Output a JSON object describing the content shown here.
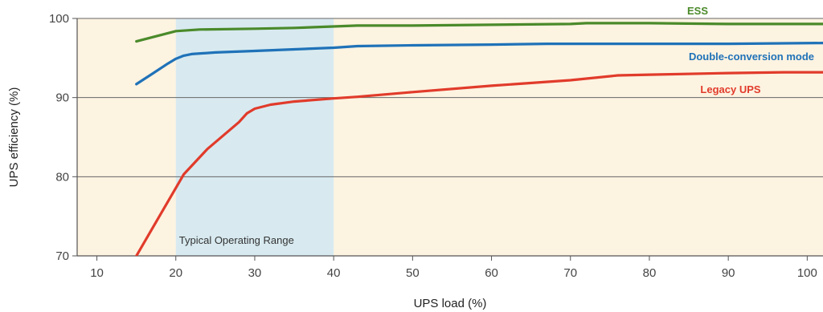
{
  "chart_data": {
    "type": "line",
    "xlabel": "UPS load (%)",
    "ylabel": "UPS efficiency (%)",
    "xlim": [
      7.5,
      102
    ],
    "ylim": [
      70,
      100
    ],
    "x_ticks": [
      10,
      20,
      30,
      40,
      50,
      60,
      70,
      80,
      90,
      100
    ],
    "y_ticks": [
      70,
      80,
      90,
      100
    ],
    "grid": "horizontal",
    "highlight_band": {
      "label": "Typical Operating Range",
      "x_range": [
        20,
        40
      ],
      "color": "#d8eaf0"
    },
    "background_color": "#fdf3e1",
    "series": [
      {
        "name": "ESS",
        "color": "#4a8a2a",
        "x": [
          15,
          20,
          23,
          30,
          35,
          43,
          50,
          60,
          70,
          72,
          80,
          90,
          102
        ],
        "y": [
          97.1,
          98.4,
          98.6,
          98.7,
          98.8,
          99.1,
          99.1,
          99.2,
          99.3,
          99.4,
          99.4,
          99.3,
          99.3
        ]
      },
      {
        "name": "Double-conversion mode",
        "color": "#1f72b8",
        "x": [
          15,
          17,
          19,
          20,
          21,
          22,
          25,
          30,
          35,
          40,
          43,
          50,
          60,
          67,
          70,
          80,
          90,
          102
        ],
        "y": [
          91.7,
          93.0,
          94.3,
          94.9,
          95.3,
          95.5,
          95.7,
          95.9,
          96.1,
          96.3,
          96.5,
          96.6,
          96.7,
          96.8,
          96.8,
          96.8,
          96.8,
          96.9
        ]
      },
      {
        "name": "Legacy UPS",
        "color": "#e13b2b",
        "x": [
          15,
          21,
          24,
          28,
          29,
          30,
          32,
          35,
          40,
          43,
          50,
          60,
          70,
          76,
          80,
          90,
          97,
          102
        ],
        "y": [
          70.0,
          80.3,
          83.5,
          86.9,
          88.0,
          88.6,
          89.1,
          89.5,
          89.9,
          90.1,
          90.7,
          91.5,
          92.2,
          92.8,
          92.9,
          93.1,
          93.2,
          93.2
        ]
      }
    ]
  }
}
